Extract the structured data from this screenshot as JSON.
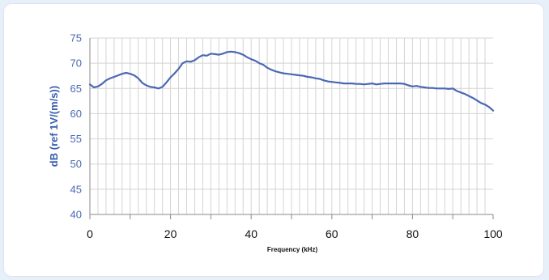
{
  "chart_data": {
    "type": "line",
    "title": "",
    "xlabel": "Frequency (kHz)",
    "ylabel": "dB (ref 1V/(m/s))",
    "xlim": [
      0,
      100
    ],
    "ylim": [
      40,
      75
    ],
    "xticks": [
      0,
      10,
      20,
      30,
      40,
      50,
      60,
      70,
      80,
      90,
      100
    ],
    "xtick_labels": [
      "0",
      "20",
      "40",
      "60",
      "80",
      "100"
    ],
    "yticks": [
      40,
      45,
      50,
      55,
      60,
      65,
      70,
      75
    ],
    "grid": true,
    "legend": "none",
    "line_color": "#4a68b3",
    "grid_color": "#d4d4d4",
    "series": [
      {
        "x": [
          0,
          1,
          2,
          3,
          4,
          5,
          6,
          7,
          8,
          9,
          10,
          11,
          12,
          13,
          14,
          15,
          16,
          17,
          18,
          19,
          20,
          21,
          22,
          23,
          24,
          25,
          26,
          27,
          28,
          29,
          30,
          31,
          32,
          33,
          34,
          35,
          36,
          37,
          38,
          39,
          40,
          41,
          42,
          43,
          44,
          45,
          46,
          47,
          48,
          49,
          50,
          51,
          52,
          53,
          54,
          55,
          56,
          57,
          58,
          59,
          60,
          61,
          62,
          63,
          64,
          65,
          66,
          67,
          68,
          69,
          70,
          71,
          72,
          73,
          74,
          75,
          76,
          77,
          78,
          79,
          80,
          81,
          82,
          83,
          84,
          85,
          86,
          87,
          88,
          89,
          90,
          91,
          92,
          93,
          94,
          95,
          96,
          97,
          98,
          99,
          100
        ],
        "values": [
          65.8,
          65.2,
          65.4,
          65.9,
          66.6,
          67.0,
          67.3,
          67.6,
          67.9,
          68.1,
          67.9,
          67.6,
          67.0,
          66.1,
          65.6,
          65.3,
          65.2,
          65.0,
          65.3,
          66.2,
          67.2,
          68.0,
          68.9,
          70.0,
          70.4,
          70.3,
          70.6,
          71.2,
          71.6,
          71.5,
          71.9,
          71.8,
          71.7,
          71.9,
          72.2,
          72.3,
          72.2,
          72.0,
          71.7,
          71.2,
          70.8,
          70.5,
          70.0,
          69.7,
          69.1,
          68.7,
          68.4,
          68.2,
          68.0,
          67.9,
          67.8,
          67.7,
          67.6,
          67.5,
          67.3,
          67.2,
          67.0,
          66.9,
          66.6,
          66.4,
          66.3,
          66.2,
          66.1,
          66.0,
          66.0,
          66.0,
          65.9,
          65.9,
          65.8,
          65.9,
          66.0,
          65.8,
          65.9,
          66.0,
          66.0,
          66.0,
          66.0,
          66.0,
          65.9,
          65.6,
          65.4,
          65.5,
          65.3,
          65.2,
          65.1,
          65.1,
          65.0,
          65.0,
          65.0,
          64.9,
          65.0,
          64.5,
          64.2,
          63.9,
          63.5,
          63.1,
          62.6,
          62.1,
          61.8,
          61.3,
          60.6
        ]
      }
    ]
  }
}
